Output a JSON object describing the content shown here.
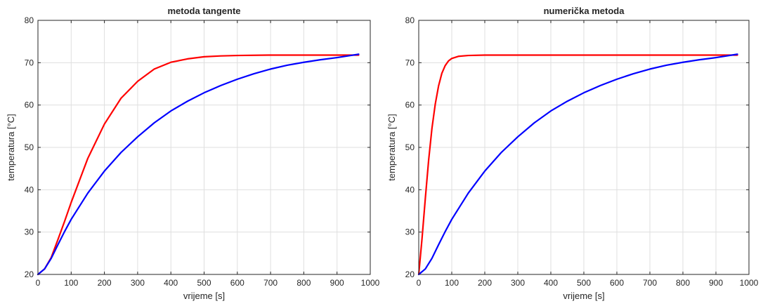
{
  "chart_data": [
    {
      "type": "line",
      "title": "metoda tangente",
      "xlabel": "vrijeme [s]",
      "ylabel": "temperatura [°C]",
      "xlim": [
        0,
        1000
      ],
      "ylim": [
        20,
        80
      ],
      "xticks": [
        0,
        100,
        200,
        300,
        400,
        500,
        600,
        700,
        800,
        900,
        1000
      ],
      "yticks": [
        20,
        30,
        40,
        50,
        60,
        70,
        80
      ],
      "grid": true,
      "series": [
        {
          "color": "#ff0000",
          "x": [
            0,
            20,
            40,
            60,
            80,
            100,
            150,
            200,
            250,
            300,
            350,
            400,
            450,
            500,
            550,
            600,
            700,
            800,
            900,
            965
          ],
          "y": [
            20.0,
            21.3,
            24.0,
            28.2,
            32.5,
            37.0,
            47.4,
            55.5,
            61.6,
            65.6,
            68.5,
            70.1,
            70.9,
            71.4,
            71.6,
            71.7,
            71.8,
            71.8,
            71.8,
            71.8
          ]
        },
        {
          "color": "#0000ff",
          "x": [
            0,
            20,
            40,
            60,
            80,
            100,
            150,
            200,
            250,
            300,
            350,
            400,
            450,
            500,
            550,
            600,
            650,
            700,
            750,
            800,
            850,
            900,
            965
          ],
          "y": [
            20.0,
            21.3,
            23.8,
            27.0,
            30.1,
            33.0,
            39.2,
            44.4,
            48.8,
            52.5,
            55.8,
            58.6,
            60.9,
            62.9,
            64.6,
            66.1,
            67.4,
            68.5,
            69.4,
            70.1,
            70.7,
            71.2,
            72.0
          ]
        }
      ]
    },
    {
      "type": "line",
      "title": "numerička metoda",
      "xlabel": "vrijeme [s]",
      "ylabel": "temperatura [°C]",
      "xlim": [
        0,
        1000
      ],
      "ylim": [
        20,
        80
      ],
      "xticks": [
        0,
        100,
        200,
        300,
        400,
        500,
        600,
        700,
        800,
        900,
        1000
      ],
      "yticks": [
        20,
        30,
        40,
        50,
        60,
        70,
        80
      ],
      "grid": true,
      "series": [
        {
          "color": "#ff0000",
          "x": [
            0,
            10,
            20,
            30,
            40,
            50,
            60,
            70,
            80,
            90,
            100,
            120,
            150,
            200,
            300,
            500,
            700,
            965
          ],
          "y": [
            20.0,
            28.5,
            38.0,
            47.0,
            54.5,
            60.2,
            64.5,
            67.5,
            69.3,
            70.4,
            71.0,
            71.5,
            71.7,
            71.8,
            71.8,
            71.8,
            71.8,
            71.8
          ]
        },
        {
          "color": "#0000ff",
          "x": [
            0,
            20,
            40,
            60,
            80,
            100,
            150,
            200,
            250,
            300,
            350,
            400,
            450,
            500,
            550,
            600,
            650,
            700,
            750,
            800,
            850,
            900,
            965
          ],
          "y": [
            20.0,
            21.3,
            23.8,
            27.0,
            30.1,
            33.0,
            39.2,
            44.4,
            48.8,
            52.5,
            55.8,
            58.6,
            60.9,
            62.9,
            64.6,
            66.1,
            67.4,
            68.5,
            69.4,
            70.1,
            70.7,
            71.2,
            72.0
          ]
        }
      ]
    }
  ]
}
